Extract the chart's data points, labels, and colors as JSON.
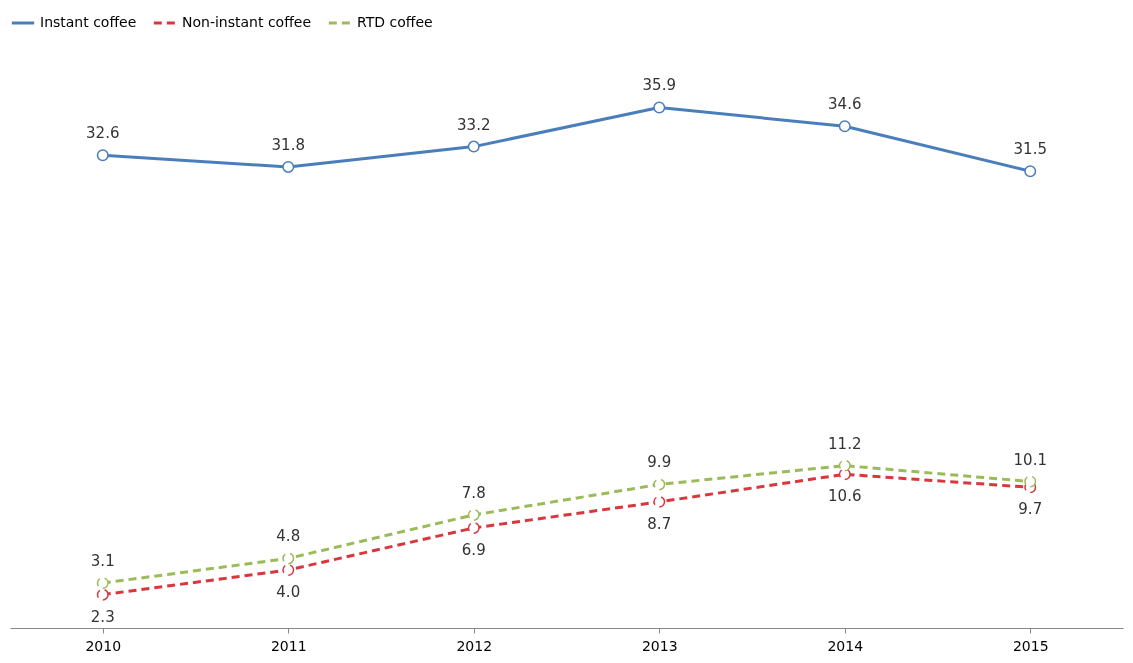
{
  "chart_data": {
    "type": "line",
    "categories": [
      "2010",
      "2011",
      "2012",
      "2013",
      "2014",
      "2015"
    ],
    "series": [
      {
        "name": "Instant coffee",
        "color": "#4a7ebb",
        "line_style": "solid",
        "values": [
          32.6,
          31.8,
          33.2,
          35.9,
          34.6,
          31.5
        ],
        "value_labels": [
          "32.6",
          "31.8",
          "33.2",
          "35.9",
          "34.6",
          "31.5"
        ]
      },
      {
        "name": "Non-instant coffee",
        "color": "#d9363e",
        "line_style": "dashed",
        "values": [
          2.3,
          4.0,
          6.9,
          8.7,
          10.6,
          9.7
        ],
        "value_labels": [
          "2.3",
          "4.0",
          "6.9",
          "8.7",
          "10.6",
          "9.7"
        ]
      },
      {
        "name": "RTD coffee",
        "color": "#9bbb59",
        "line_style": "dashed",
        "values": [
          3.1,
          4.8,
          7.8,
          9.9,
          11.2,
          10.1
        ],
        "value_labels": [
          "3.1",
          "4.8",
          "7.8",
          "9.9",
          "11.2",
          "10.1"
        ]
      }
    ],
    "marker": "circle",
    "legend": "top",
    "grid": false,
    "tick_labels": "x"
  }
}
